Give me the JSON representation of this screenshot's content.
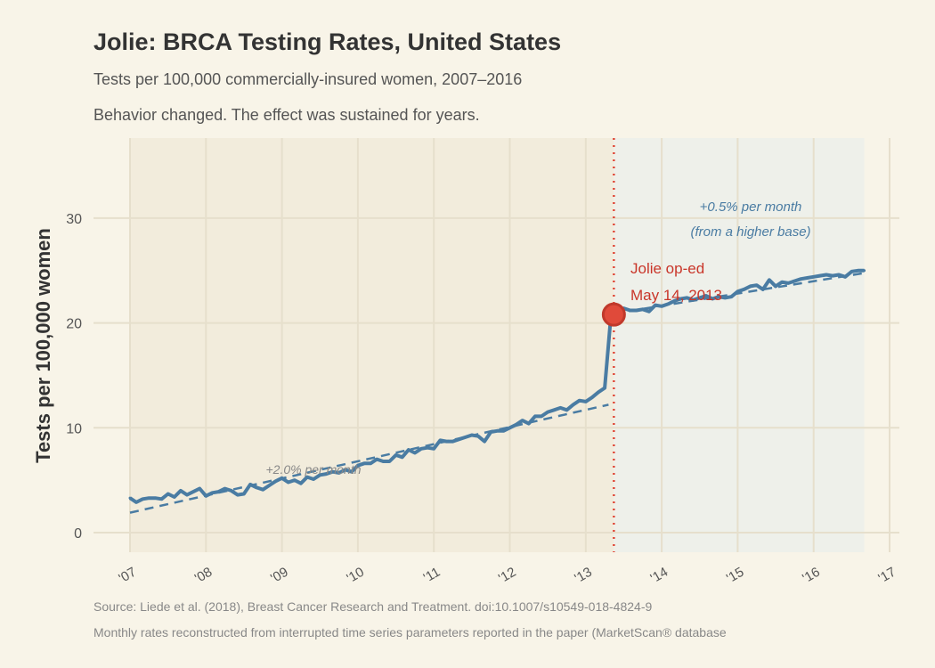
{
  "title": "Jolie: BRCA Testing Rates, United States",
  "subtitle": "Tests per 100,000 commercially-insured women, 2007–2016",
  "subtitle2": "Behavior changed. The effect was sustained for years.",
  "source": "Source: Liede et al. (2018), Breast Cancer Research and Treatment. doi:10.1007/s10549-018-4824-9",
  "note": "Monthly rates reconstructed from interrupted time series parameters reported in the paper (MarketScan® database",
  "colors": {
    "line": "#4a7ca3",
    "event": "#e04a3a",
    "event_text": "#c9362a",
    "pre_shade": "#f2ecdc",
    "post_shade": "#eef0ea"
  },
  "chart_data": {
    "type": "line",
    "xlabel": "",
    "ylabel": "Tests per 100,000 women",
    "ylim": [
      -1.5,
      38
    ],
    "xlim": [
      2006.8,
      2017.1
    ],
    "yticks": [
      0,
      10,
      20,
      30
    ],
    "xticks": [
      {
        "v": 2007,
        "label": "'07"
      },
      {
        "v": 2008,
        "label": "'08"
      },
      {
        "v": 2009,
        "label": "'09"
      },
      {
        "v": 2010,
        "label": "'10"
      },
      {
        "v": 2011,
        "label": "'11"
      },
      {
        "v": 2012,
        "label": "'12"
      },
      {
        "v": 2013,
        "label": "'13"
      },
      {
        "v": 2014,
        "label": "'14"
      },
      {
        "v": 2015,
        "label": "'15"
      },
      {
        "v": 2016,
        "label": "'16"
      },
      {
        "v": 2017,
        "label": "'17"
      }
    ],
    "grid": true,
    "start_month": "2007-01",
    "values": [
      3.3,
      2.9,
      3.2,
      3.3,
      3.3,
      3.2,
      3.7,
      3.4,
      4.0,
      3.6,
      3.9,
      4.2,
      3.5,
      3.8,
      3.9,
      4.2,
      4.0,
      3.6,
      3.7,
      4.6,
      4.3,
      4.1,
      4.5,
      4.9,
      5.2,
      4.8,
      5.0,
      4.7,
      5.3,
      5.1,
      5.5,
      5.6,
      5.8,
      5.7,
      6.0,
      5.8,
      6.4,
      6.6,
      6.6,
      7.0,
      6.8,
      6.8,
      7.4,
      7.2,
      7.9,
      7.6,
      8.0,
      8.1,
      8.0,
      8.8,
      8.7,
      8.7,
      8.9,
      9.1,
      9.3,
      9.2,
      8.7,
      9.6,
      9.7,
      9.7,
      10.0,
      10.3,
      10.7,
      10.4,
      11.1,
      11.1,
      11.5,
      11.7,
      11.9,
      11.7,
      12.2,
      12.6,
      12.5,
      12.9,
      13.4,
      13.8,
      20.8,
      20.7,
      21.4,
      21.2,
      21.2,
      21.3,
      21.1,
      21.7,
      21.6,
      21.8,
      22.1,
      22.3,
      22.4,
      22.2,
      22.4,
      22.6,
      22.3,
      22.5,
      22.4,
      22.5,
      23.0,
      23.2,
      23.5,
      23.6,
      23.2,
      24.1,
      23.5,
      23.9,
      23.8,
      24.0,
      24.2,
      24.3,
      24.4,
      24.5,
      24.6,
      24.5,
      24.6,
      24.4,
      24.9,
      25.0,
      25.0
    ],
    "event": {
      "date": "2013-05-14",
      "x": 2013.37,
      "y": 20.8,
      "label1": "Jolie op-ed",
      "label2": "May 14, 2013"
    },
    "trends": [
      {
        "label": "+2.0% per month",
        "from": [
          2007,
          1.9
        ],
        "to": [
          2013.3,
          12.2
        ]
      },
      {
        "label": "+0.5% per month",
        "label2": "(from a higher base)",
        "from": [
          2013.37,
          20.9
        ],
        "to": [
          2016.7,
          24.8
        ]
      }
    ]
  }
}
